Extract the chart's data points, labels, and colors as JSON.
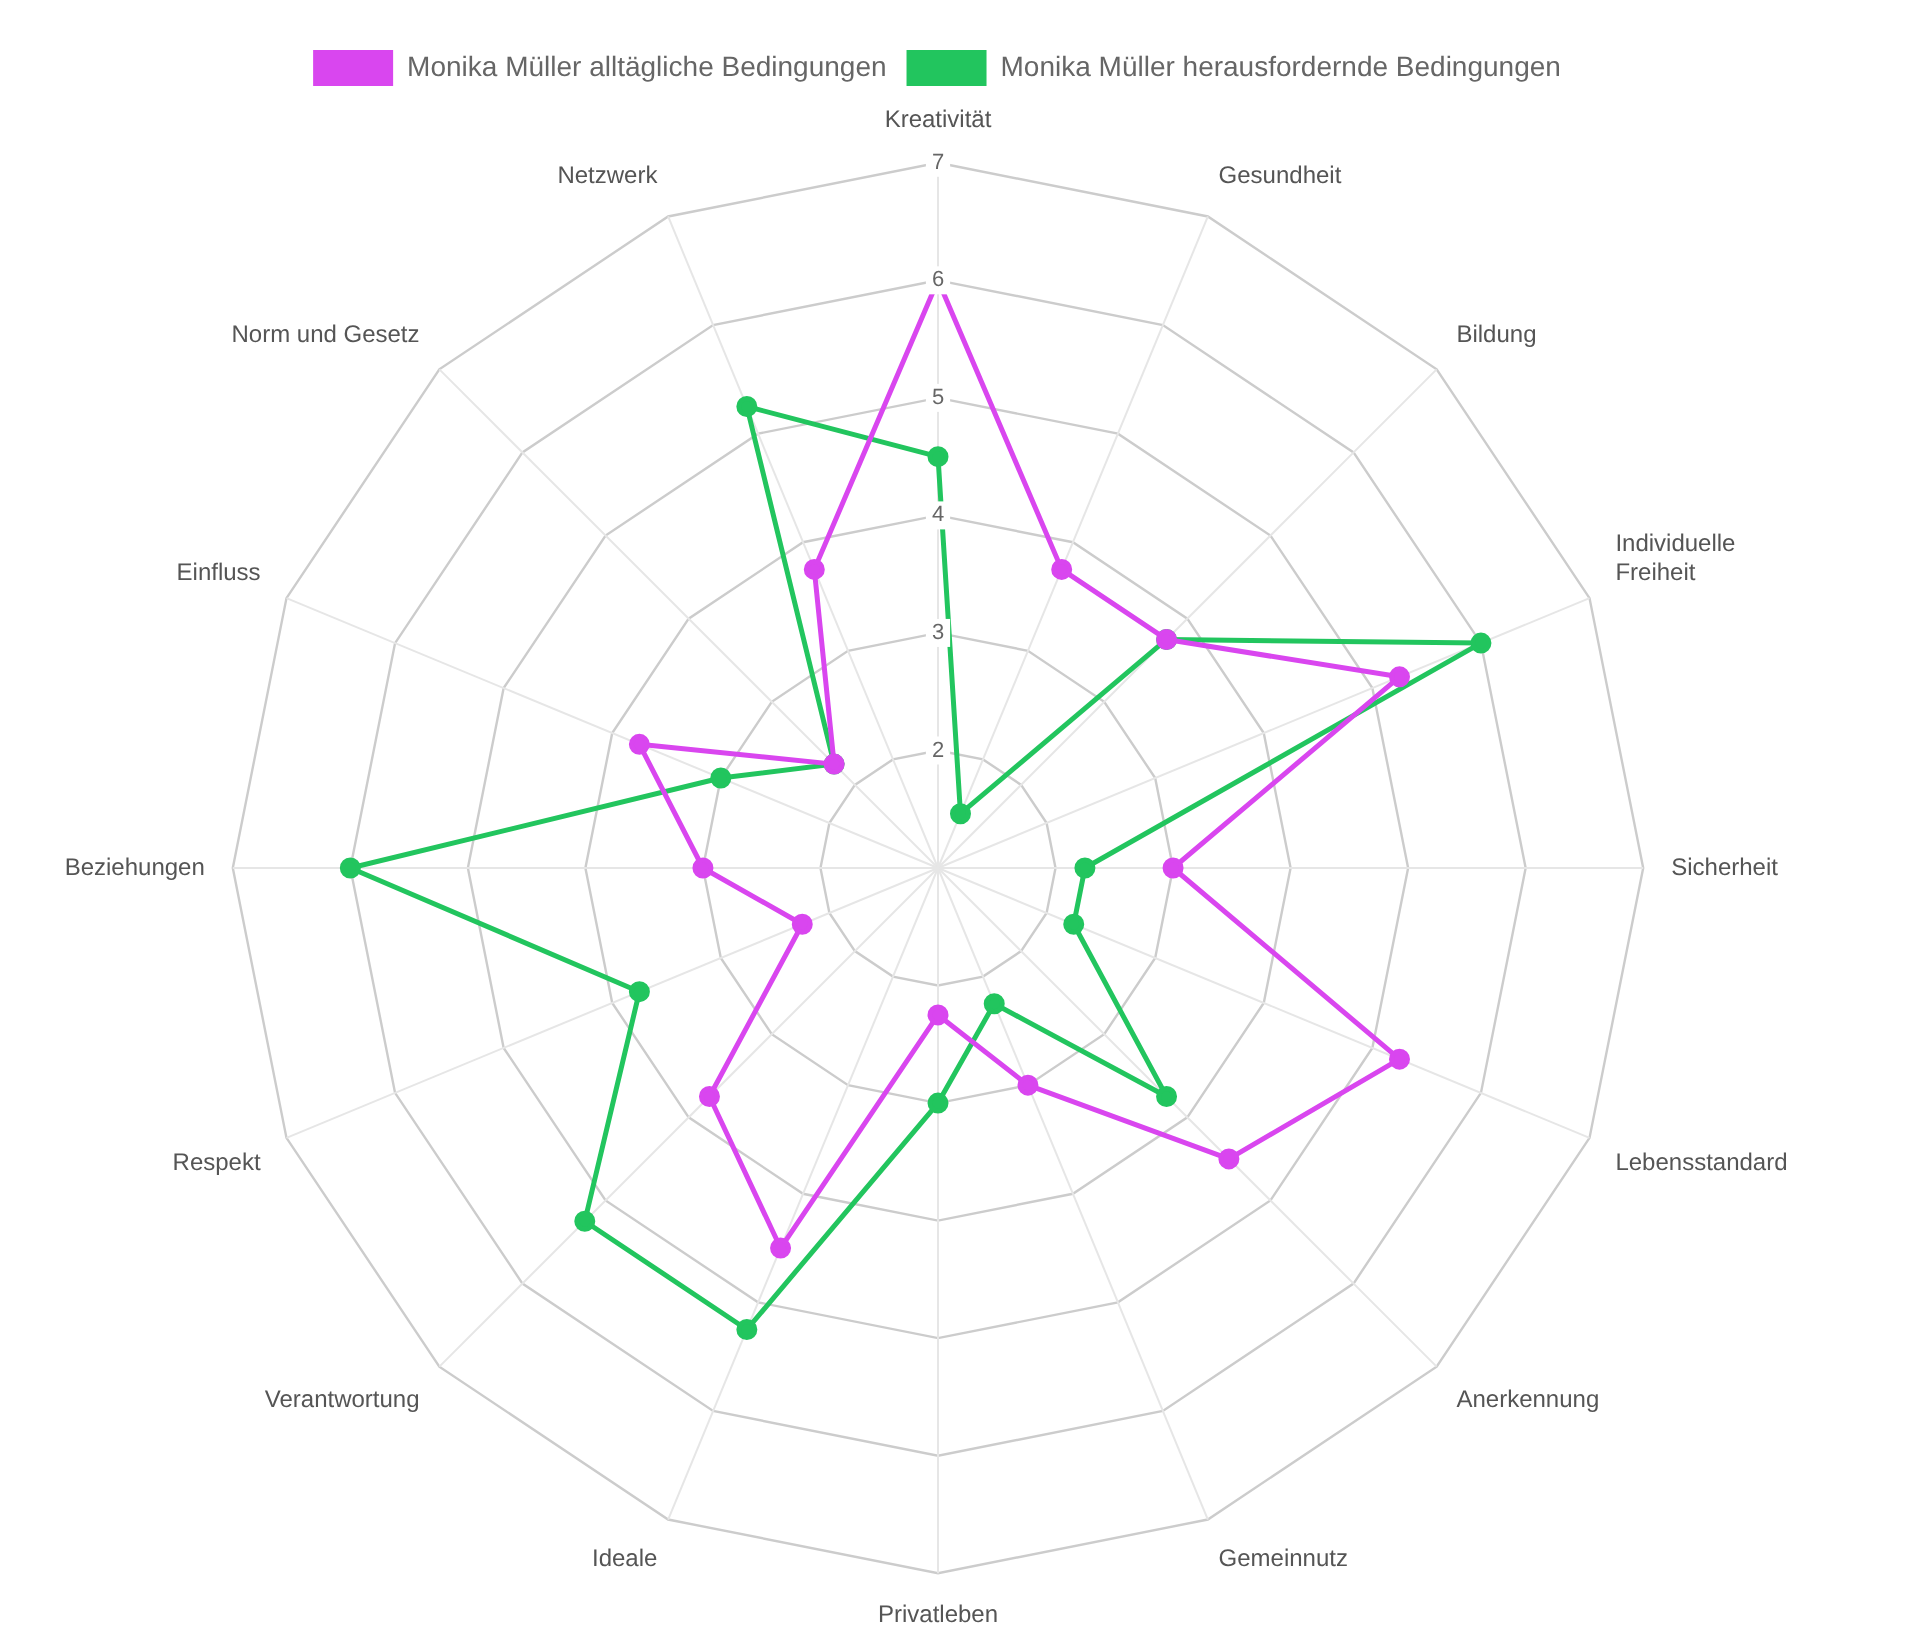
{
  "chart_data": {
    "type": "radar",
    "categories": [
      "Kreativität",
      "Gesundheit",
      "Bildung",
      "Individuelle Freiheit",
      "Sicherheit",
      "Lebensstandard",
      "Anerkennung",
      "Gemeinnutz",
      "Privatleben",
      "Ideale",
      "Verantwortung",
      "Respekt",
      "Beziehungen",
      "Einfluss",
      "Norm und Gesetz",
      "Netzwerk"
    ],
    "series": [
      {
        "name": "Monika Müller alltägliche Bedingungen",
        "color": "#d946ef",
        "values": [
          6,
          3.75,
          3.75,
          5.25,
          3,
          5.25,
          4.5,
          3,
          2.25,
          4.5,
          3.75,
          2.25,
          3,
          3.75,
          2.25,
          3.75
        ]
      },
      {
        "name": "Monika Müller herausfordernde Bedingungen",
        "color": "#22c55e",
        "values": [
          4.5,
          1.5,
          3.75,
          6,
          2.25,
          2.25,
          3.75,
          2.25,
          3,
          5.25,
          5.25,
          3.75,
          6,
          3,
          2.25,
          5.25
        ]
      }
    ],
    "ylim": [
      1,
      7
    ],
    "yticks": [
      2,
      3,
      4,
      5,
      6,
      7
    ],
    "legend": "top",
    "marker": "circle",
    "grid": true
  }
}
